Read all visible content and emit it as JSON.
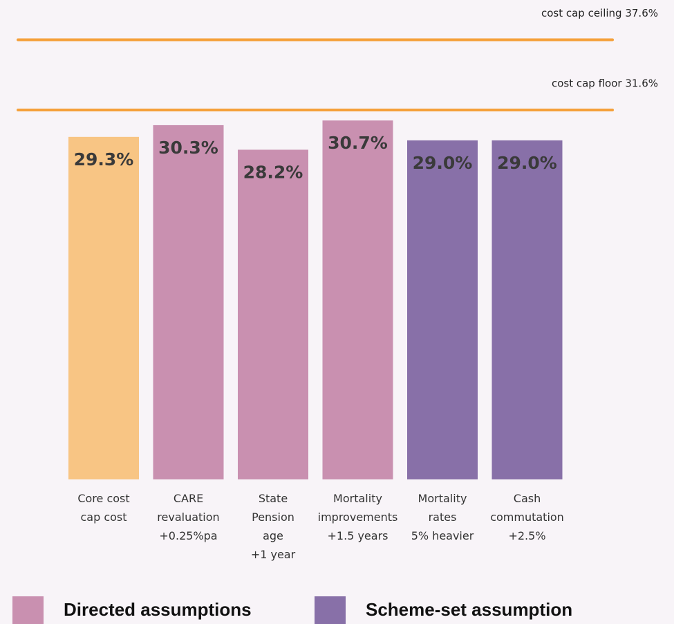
{
  "chart_data": {
    "type": "bar",
    "categories": [
      "Core cost\ncap cost",
      "CARE\nrevaluation\n+0.25%pa",
      "State\nPension\nage\n+1 year",
      "Mortality\nimprovements\n+1.5 years",
      "Mortality\nrates\n5% heavier",
      "Cash\ncommutation\n+2.5%"
    ],
    "values": [
      29.3,
      30.3,
      28.2,
      30.7,
      29.0,
      29.0
    ],
    "value_labels": [
      "29.3%",
      "30.3%",
      "28.2%",
      "30.7%",
      "29.0%",
      "29.0%"
    ],
    "colors": [
      "#f8c584",
      "#c990b0",
      "#c990b0",
      "#c990b0",
      "#8870a8",
      "#8870a8"
    ],
    "ylim": [
      0,
      40
    ],
    "reference_lines": [
      {
        "label": "cost cap ceiling 37.6%",
        "value": 37.6,
        "color": "#f5a03a"
      },
      {
        "label": "cost cap floor 31.6%",
        "value": 31.6,
        "color": "#f5a03a"
      }
    ],
    "legend": [
      {
        "name": "Directed assumptions",
        "color": "#c990b0"
      },
      {
        "name": "Scheme-set assumption",
        "color": "#8870a8"
      }
    ]
  }
}
